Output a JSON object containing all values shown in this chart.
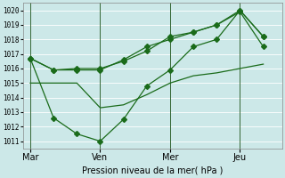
{
  "background_color": "#cce8e8",
  "grid_color": "#ffffff",
  "line_color": "#1a6b1a",
  "xlabel": "Pression niveau de la mer( hPa )",
  "ylim": [
    1010.5,
    1020.5
  ],
  "yticks": [
    1011,
    1012,
    1013,
    1014,
    1015,
    1016,
    1017,
    1018,
    1019,
    1020
  ],
  "xtick_labels": [
    "Mar",
    "Ven",
    "Mer",
    "Jeu"
  ],
  "xtick_positions": [
    0,
    3,
    6,
    9
  ],
  "xlim": [
    -0.3,
    10.8
  ],
  "series1_x": [
    0,
    1,
    2,
    3,
    4,
    5,
    6,
    7,
    8,
    9,
    10
  ],
  "series1_y": [
    1016.7,
    1015.9,
    1015.9,
    1015.9,
    1016.6,
    1017.5,
    1018.0,
    1018.5,
    1019.0,
    1020.0,
    1018.2
  ],
  "series2_x": [
    0,
    1,
    2,
    3,
    4,
    5,
    6,
    7,
    8,
    9,
    10
  ],
  "series2_y": [
    1016.7,
    1015.9,
    1016.0,
    1016.0,
    1016.5,
    1017.2,
    1018.2,
    1018.5,
    1019.0,
    1019.9,
    1017.5
  ],
  "series3_x": [
    0,
    1,
    2,
    3,
    4,
    5,
    6,
    7,
    8,
    9,
    10
  ],
  "series3_y": [
    1015.0,
    1015.0,
    1015.0,
    1013.3,
    1013.5,
    1014.2,
    1015.0,
    1015.5,
    1015.7,
    1016.0,
    1016.3
  ],
  "series4_x": [
    0,
    1,
    2,
    3,
    4,
    5,
    6,
    7,
    8,
    9,
    10
  ],
  "series4_y": [
    1016.7,
    1012.6,
    1011.5,
    1011.0,
    1012.5,
    1014.8,
    1015.9,
    1017.5,
    1018.0,
    1020.0,
    1018.2
  ],
  "vline_color": "#336633",
  "vline_positions": [
    0,
    3,
    6,
    9
  ]
}
